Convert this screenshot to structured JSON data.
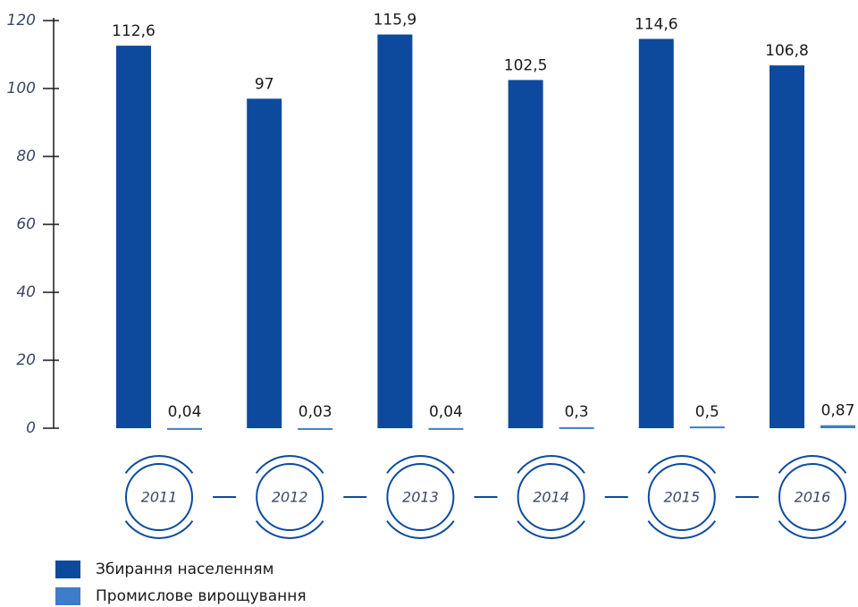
{
  "chart_data": {
    "type": "bar",
    "categories": [
      "2011",
      "2012",
      "2013",
      "2014",
      "2015",
      "2016"
    ],
    "series": [
      {
        "name": "Збирання населенням",
        "color": "#0d4a9e",
        "values": [
          112.6,
          97,
          115.9,
          102.5,
          114.6,
          106.8
        ],
        "value_labels": [
          "112,6",
          "97",
          "115,9",
          "102,5",
          "114,6",
          "106,8"
        ]
      },
      {
        "name": "Промислове вирощування",
        "color": "#3d7cc9",
        "values": [
          0.04,
          0.03,
          0.04,
          0.3,
          0.5,
          0.87
        ],
        "value_labels": [
          "0,04",
          "0,03",
          "0,04",
          "0,3",
          "0,5",
          "0,87"
        ]
      }
    ],
    "ylim": [
      0,
      120
    ],
    "yticks": [
      0,
      20,
      40,
      60,
      80,
      100,
      120
    ]
  }
}
